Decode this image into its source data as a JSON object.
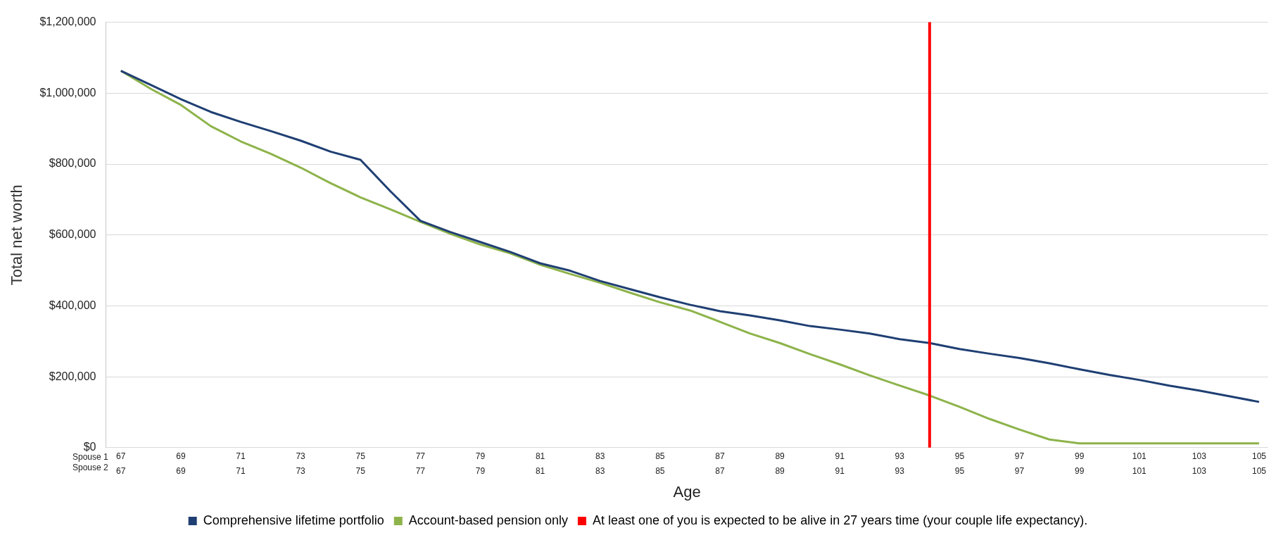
{
  "chart_data": {
    "type": "line",
    "xlabel": "Age",
    "ylabel": "Total net worth",
    "x": [
      67,
      68,
      69,
      70,
      71,
      72,
      73,
      74,
      75,
      76,
      77,
      78,
      79,
      80,
      81,
      82,
      83,
      84,
      85,
      86,
      87,
      88,
      89,
      90,
      91,
      92,
      93,
      94,
      95,
      96,
      97,
      98,
      99,
      100,
      101,
      102,
      103,
      104,
      105
    ],
    "series": [
      {
        "name": "Comprehensive lifetime portfolio",
        "color": "#1f3f73",
        "values": [
          1063000,
          1023000,
          983000,
          947000,
          919000,
          893000,
          866000,
          835000,
          812000,
          723000,
          640000,
          608000,
          580000,
          552000,
          520000,
          499000,
          470000,
          447000,
          424000,
          403000,
          385000,
          373000,
          359000,
          343000,
          333000,
          322000,
          306000,
          295000,
          278000,
          265000,
          253000,
          238000,
          221000,
          205000,
          191000,
          175000,
          161000,
          145000,
          129000
        ]
      },
      {
        "name": "Account-based pension only",
        "color": "#8db34a",
        "values": [
          1063000,
          1012000,
          967000,
          907000,
          864000,
          829000,
          790000,
          746000,
          706000,
          672000,
          637000,
          603000,
          573000,
          548000,
          516000,
          490000,
          465000,
          437000,
          410000,
          387000,
          355000,
          322000,
          295000,
          264000,
          235000,
          204000,
          175000,
          147000,
          115000,
          81000,
          51000,
          23000,
          12000,
          12000,
          12000,
          12000,
          12000,
          12000,
          12000
        ]
      }
    ],
    "ref_lines": [
      {
        "axis": "x",
        "value": 94,
        "label": "At least one of you is expected to be alive in 27 years time (your couple life expectancy).",
        "color": "#ff0000"
      }
    ],
    "annotations": [
      "Spouse 1",
      "Spouse 2"
    ],
    "xlim": [
      66.5,
      105.3
    ],
    "xticks": [
      67,
      69,
      71,
      73,
      75,
      77,
      79,
      81,
      83,
      85,
      87,
      89,
      91,
      93,
      95,
      97,
      99,
      101,
      103,
      105
    ],
    "x2lim": [
      66.5,
      105.3
    ],
    "x2ticks": [
      67,
      69,
      71,
      73,
      75,
      77,
      79,
      81,
      83,
      85,
      87,
      89,
      91,
      93,
      95,
      97,
      99,
      101,
      103,
      105
    ],
    "ylim": [
      0,
      1200000
    ],
    "yticks": [
      {
        "value": 0,
        "label": "$0"
      },
      {
        "value": 200000,
        "label": "$200,000"
      },
      {
        "value": 400000,
        "label": "$400,000"
      },
      {
        "value": 600000,
        "label": "$600,000"
      },
      {
        "value": 800000,
        "label": "$800,000"
      },
      {
        "value": 1000000,
        "label": "$1,000,000"
      },
      {
        "value": 1200000,
        "label": "$1,200,000"
      }
    ],
    "grid": "y",
    "legend": "bottom",
    "marker": "none",
    "line_style": "solid"
  }
}
